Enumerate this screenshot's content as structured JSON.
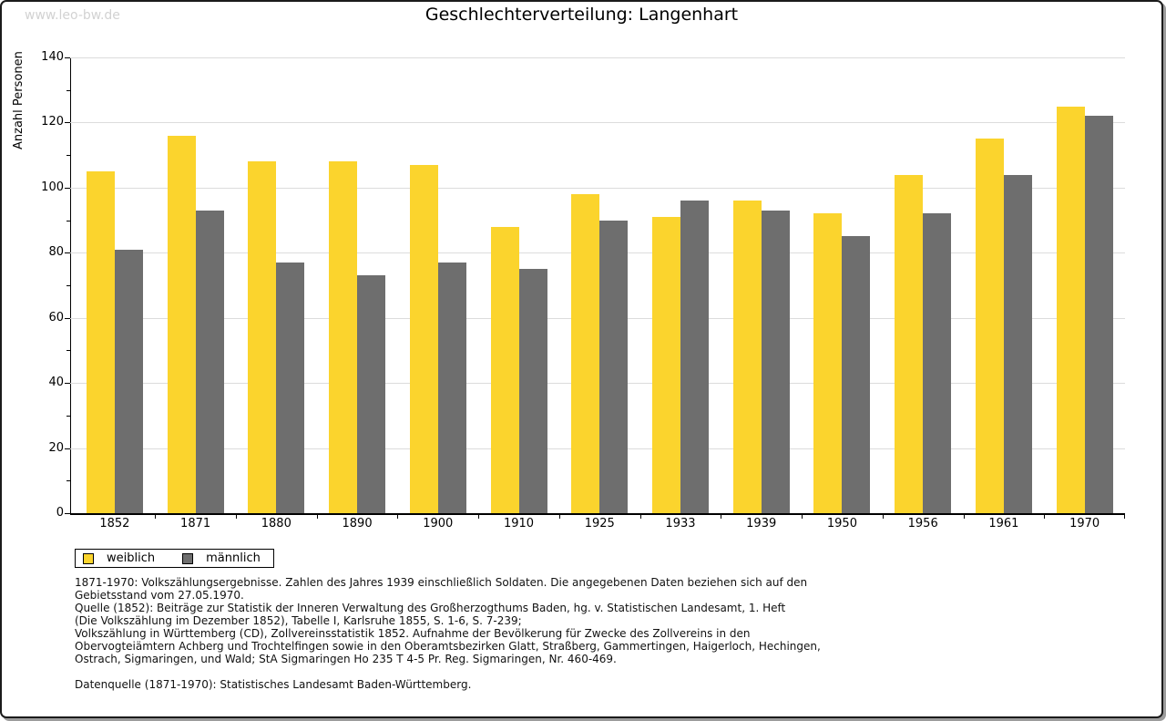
{
  "watermark": "www.leo-bw.de",
  "title": "Geschlechterverteilung: Langenhart",
  "chart_data": {
    "type": "bar",
    "title": "Geschlechterverteilung: Langenhart",
    "xlabel": "",
    "ylabel": "Anzahl Personen",
    "categories": [
      "1852",
      "1871",
      "1880",
      "1890",
      "1900",
      "1910",
      "1925",
      "1933",
      "1939",
      "1950",
      "1956",
      "1961",
      "1970"
    ],
    "series": [
      {
        "name": "weiblich",
        "color": "#FBD42D",
        "values": [
          105,
          116,
          108,
          108,
          107,
          88,
          98,
          91,
          96,
          92,
          104,
          115,
          125
        ]
      },
      {
        "name": "männlich",
        "color": "#6E6E6E",
        "values": [
          81,
          93,
          77,
          73,
          77,
          75,
          90,
          96,
          93,
          85,
          92,
          104,
          122
        ]
      }
    ],
    "ylim": [
      0,
      140
    ],
    "ytick_step": 20,
    "yminor_step": 10,
    "grid": "horizontal",
    "legend_position": "bottom-left"
  },
  "notes": {
    "main": "1871-1970: Volkszählungsergebnisse. Zahlen des Jahres 1939 einschließlich Soldaten. Die angegebenen Daten beziehen sich auf den\nGebietsstand vom 27.05.1970.\nQuelle (1852): Beiträge zur Statistik der Inneren Verwaltung des Großherzogthums Baden, hg. v. Statistischen Landesamt, 1. Heft\n(Die Volkszählung im Dezember 1852), Tabelle I, Karlsruhe 1855, S. 1-6, S. 7-239;\nVolkszählung in Württemberg (CD), Zollvereinsstatistik 1852. Aufnahme der Bevölkerung für Zwecke des Zollvereins in den\nObervogteiämtern Achberg und Trochtelfingen sowie in den Oberamtsbezirken Glatt, Straßberg, Gammertingen, Haigerloch, Hechingen,\nOstrach, Sigmaringen, und Wald; StA Sigmaringen Ho 235 T 4-5 Pr. Reg. Sigmaringen, Nr. 460-469.",
    "source": "Datenquelle (1871-1970): Statistisches Landesamt Baden-Württemberg."
  },
  "colors": {
    "female_bar": "#FBD42D",
    "male_bar": "#6E6E6E",
    "gridline": "#dcdcdc",
    "axis": "#000000",
    "watermark": "#d2d2d2",
    "frame_border": "#1b1b1b",
    "frame_shadow": "#9c9c9c"
  }
}
